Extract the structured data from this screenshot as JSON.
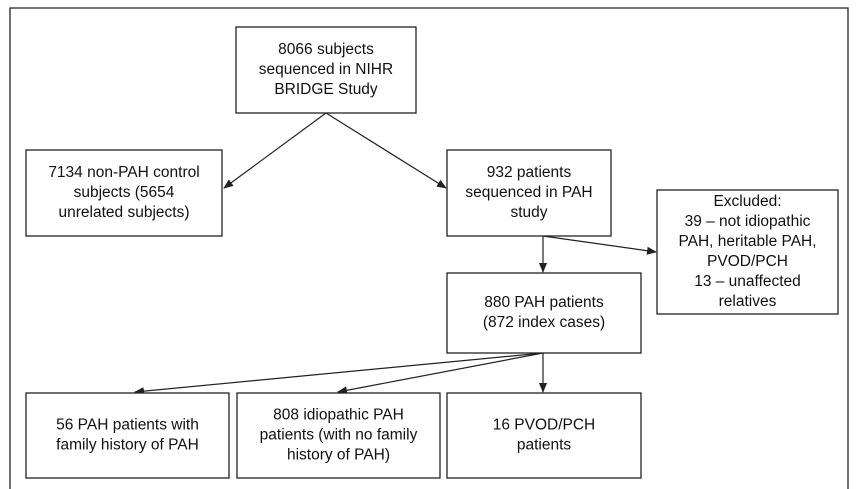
{
  "nodes": [
    {
      "lines": [
        "8066 subjects",
        "sequenced in NIHR",
        "BRIDGE Study"
      ]
    },
    {
      "lines": [
        "7134 non-PAH control",
        "subjects (5654",
        "unrelated subjects)"
      ]
    },
    {
      "lines": [
        "932 patients",
        "sequenced in PAH",
        "study"
      ]
    },
    {
      "lines": [
        "Excluded:",
        "39 – not idiopathic",
        "PAH, heritable PAH,",
        "PVOD/PCH",
        "13 – unaffected",
        "relatives"
      ]
    },
    {
      "lines": [
        "880 PAH patients",
        "(872 index cases)"
      ]
    },
    {
      "lines": [
        "56 PAH patients with",
        "family history of PAH"
      ]
    },
    {
      "lines": [
        "808 idiopathic PAH",
        "patients (with no family",
        "history of PAH)"
      ]
    },
    {
      "lines": [
        "16 PVOD/PCH",
        "patients"
      ]
    }
  ]
}
